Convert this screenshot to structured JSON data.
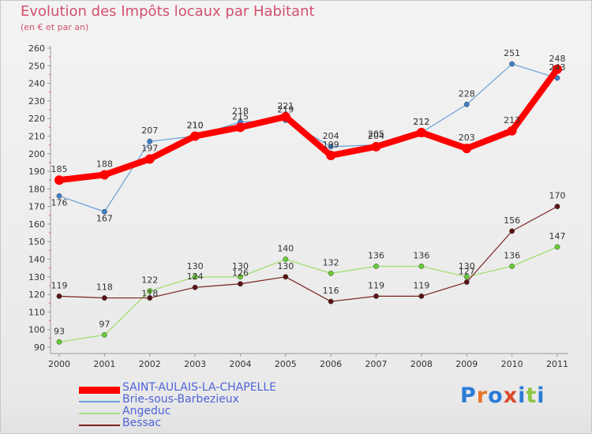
{
  "header": {
    "title": "Evolution des Impôts locaux par Habitant",
    "subtitle": "(en € et par an)"
  },
  "colors": {
    "title": "#d2506e",
    "axis": "#9a9a9a",
    "tick_text": "#333333",
    "legend_text": "#4f63d9"
  },
  "chart_data": {
    "type": "line",
    "title": "Evolution des Impôts locaux par Habitant",
    "subtitle": "(en € et par an)",
    "xlabel": "",
    "ylabel": "",
    "x": [
      "2000",
      "2001",
      "2002",
      "2003",
      "2004",
      "2005",
      "2006",
      "2007",
      "2008",
      "2009",
      "2010",
      "2011"
    ],
    "ylim": [
      90,
      260
    ],
    "yticks": [
      90,
      100,
      110,
      120,
      130,
      140,
      150,
      160,
      170,
      180,
      190,
      200,
      210,
      220,
      230,
      240,
      250,
      260
    ],
    "grid": false,
    "legend_position": "bottom-left",
    "series": [
      {
        "name": "SAINT-AULAIS-LA-CHAPELLE",
        "color": "#ff0000",
        "marker": "#ff0000",
        "width": 8,
        "values": [
          185,
          188,
          197,
          210,
          215,
          221,
          199,
          204,
          212,
          203,
          213,
          248
        ],
        "labels": [
          185,
          188,
          197,
          210,
          215,
          221,
          199,
          204,
          212,
          203,
          213,
          248
        ]
      },
      {
        "name": "Brie-sous-Barbezieux",
        "color": "#6a9fd8",
        "marker": "#3c7ec8",
        "width": 1.2,
        "values": [
          176,
          167,
          207,
          210,
          218,
          219,
          204,
          205,
          212,
          228,
          251,
          243
        ],
        "labels": [
          176,
          167,
          207,
          210,
          218,
          219,
          204,
          205,
          212,
          228,
          251,
          243
        ]
      },
      {
        "name": "Angeduc",
        "color": "#a8e07e",
        "marker": "#66cc33",
        "width": 1.5,
        "values": [
          93,
          97,
          122,
          130,
          130,
          140,
          132,
          136,
          136,
          130,
          136,
          147
        ],
        "labels": [
          93,
          97,
          122,
          130,
          130,
          140,
          132,
          136,
          136,
          130,
          136,
          147
        ]
      },
      {
        "name": "Bessac",
        "color": "#7a2020",
        "marker": "#5a1414",
        "width": 1.2,
        "values": [
          119,
          118,
          118,
          124,
          126,
          130,
          116,
          119,
          119,
          127,
          156,
          170
        ],
        "labels": [
          119,
          118,
          118,
          124,
          126,
          130,
          116,
          119,
          119,
          127,
          156,
          170
        ]
      }
    ]
  },
  "logo": {
    "letters": [
      "P",
      "r",
      "o",
      "x",
      "i",
      "t",
      "i"
    ],
    "colors": [
      "#2b7bd6",
      "#e8742a",
      "#2b7bd6",
      "#d94a2a",
      "#2b7bd6",
      "#8cc63f",
      "#2b7bd6"
    ]
  }
}
